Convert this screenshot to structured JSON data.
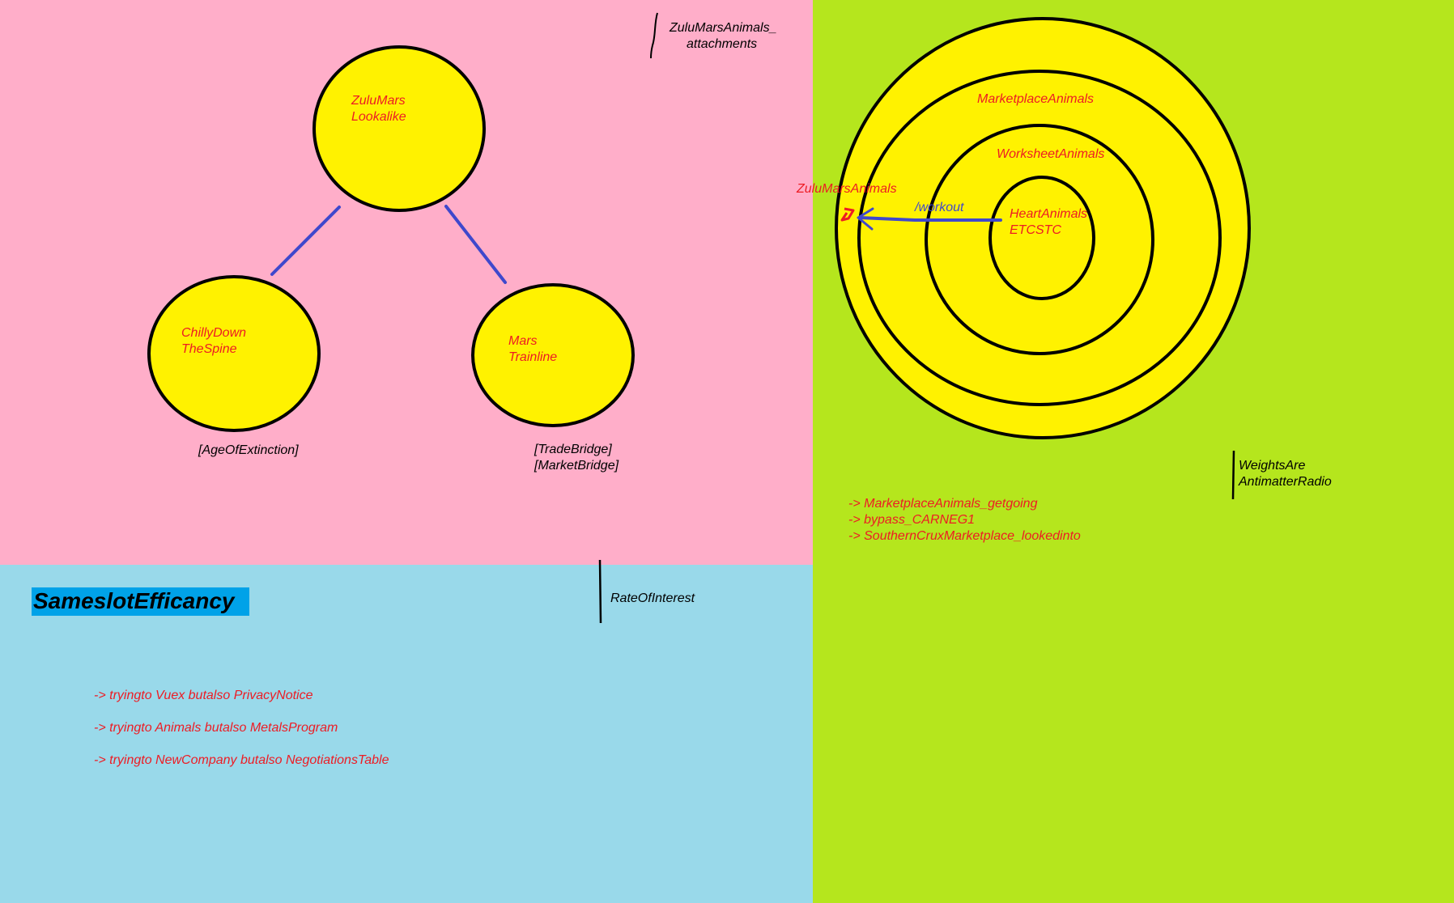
{
  "colors": {
    "pink_panel": "#ffaec9",
    "blue_panel": "#99d9ea",
    "green_panel": "#b5e61d",
    "circle_fill": "#fff200",
    "circle_stroke": "#000000",
    "connector": "#3f48cc",
    "label_red": "#ed1c24",
    "title_highlight": "#00a2e8"
  },
  "tree": {
    "root": {
      "line1": "ZuluMars",
      "line2": "Lookalike"
    },
    "left_child": {
      "line1": "ChillyDown",
      "line2": "TheSpine",
      "tag": "[AgeOfExtinction]"
    },
    "right_child": {
      "line1": "Mars",
      "line2": "Trainline",
      "tag_line1": "[TradeBridge]",
      "tag_line2": "[MarketBridge]"
    }
  },
  "attachments_note": {
    "line1": "ZuluMarsAnimals_",
    "line2": "attachments"
  },
  "rings": {
    "outer_label": "ZuluMarsAnimals",
    "ring2_label": "MarketplaceAnimals",
    "ring3_label": "WorksheetAnimals",
    "core_line1": "HeartAnimals",
    "core_line2": "ETCSTC",
    "arrow_label": "/workout"
  },
  "weights_note": {
    "line1": "WeightsAre",
    "line2": "AntimatterRadio"
  },
  "green_list": [
    "-> MarketplaceAnimals_getgoing",
    "-> bypass_CARNEG1",
    "-> SouthernCruxMarketplace_lookedinto"
  ],
  "rate_note": "RateOfInterest",
  "section_title": "SameslotEfficancy",
  "blue_list": [
    "-> tryingto Vuex butalso PrivacyNotice",
    "-> tryingto Animals butalso MetalsProgram",
    "-> tryingto NewCompany butalso NegotiationsTable"
  ]
}
